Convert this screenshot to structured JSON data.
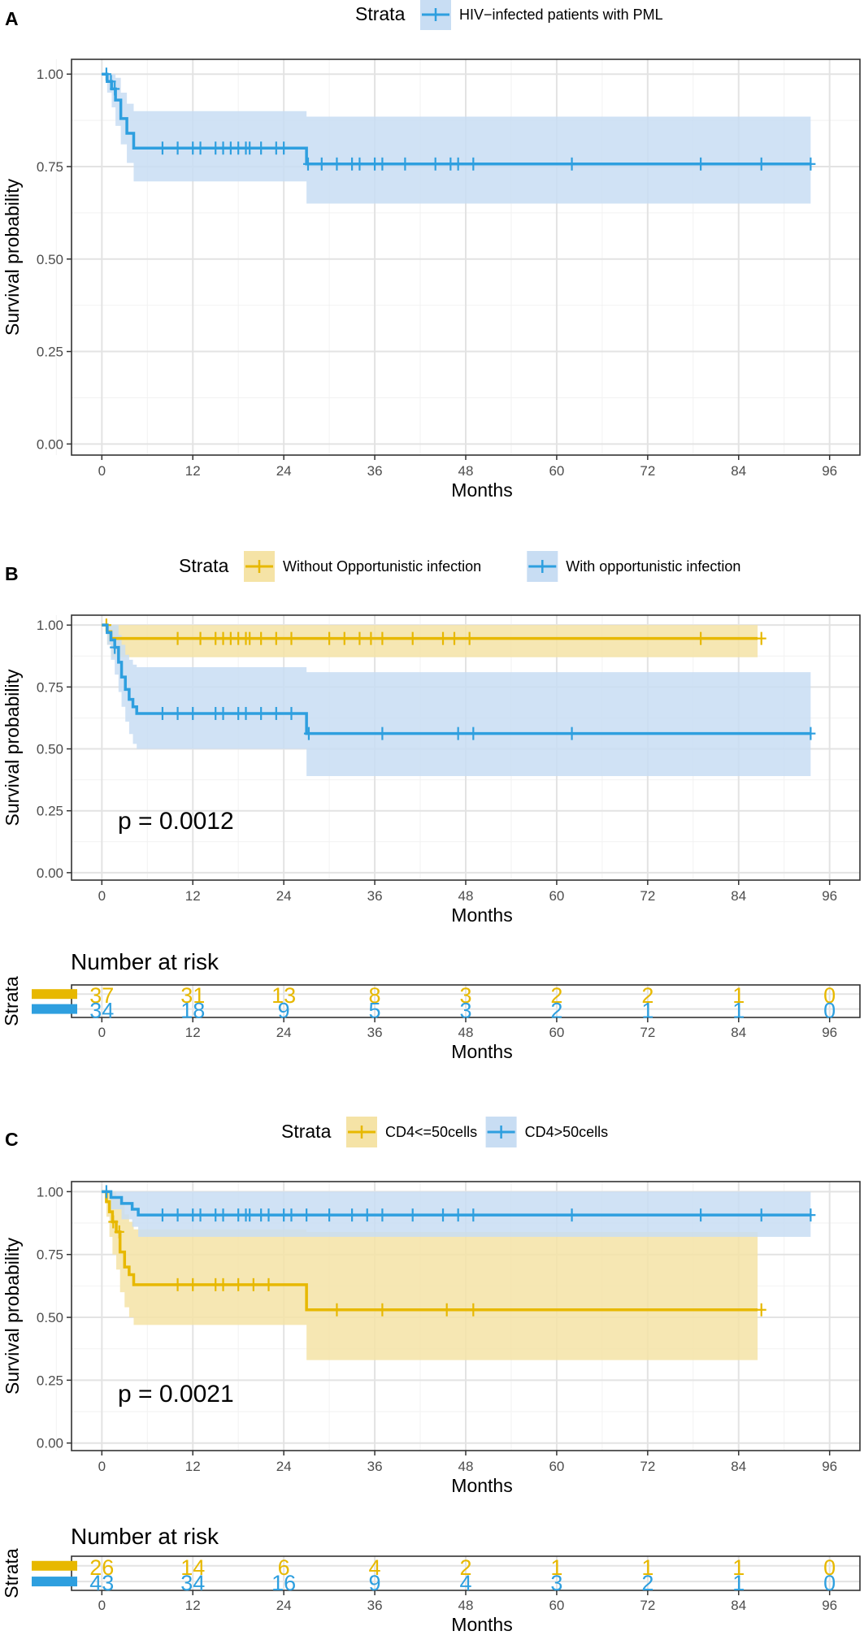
{
  "colors": {
    "yellow": "#E7B800",
    "blue": "#2E9FDF",
    "yellow_band": "#F5E3A6",
    "blue_band": "#C8DDF3",
    "frame": "#333333",
    "grid_major": "#E3E3E3",
    "grid_minor": "#F2F2F2",
    "tick_text": "#4D4D4D"
  },
  "chart_data": [
    {
      "panel": "A",
      "type": "line",
      "subtype": "kaplan-meier",
      "legend_title": "Strata",
      "xlabel": "Months",
      "ylabel": "Survival probability",
      "xlim": [
        -4,
        100
      ],
      "ylim": [
        -0.03,
        1.04
      ],
      "x_ticks": [
        0,
        12,
        24,
        36,
        48,
        60,
        72,
        84,
        96
      ],
      "y_ticks": [
        "0.00",
        "0.25",
        "0.50",
        "0.75",
        "1.00"
      ],
      "pvalue": null,
      "series": [
        {
          "name": "HIV−infected patients with PML",
          "color": "#2E9FDF",
          "band": "#C8DDF3",
          "steps": [
            [
              0,
              1.0
            ],
            [
              0.7,
              0.98
            ],
            [
              1.3,
              0.96
            ],
            [
              1.8,
              0.93
            ],
            [
              2.5,
              0.88
            ],
            [
              3.3,
              0.84
            ],
            [
              4.2,
              0.8
            ],
            [
              27,
              0.757
            ],
            [
              93.5,
              0.757
            ]
          ],
          "lower": [
            [
              0,
              1.0
            ],
            [
              0.7,
              0.95
            ],
            [
              1.3,
              0.91
            ],
            [
              1.8,
              0.86
            ],
            [
              2.5,
              0.81
            ],
            [
              3.3,
              0.76
            ],
            [
              4.2,
              0.71
            ],
            [
              27,
              0.65
            ],
            [
              93.5,
              0.65
            ]
          ],
          "upper": [
            [
              0,
              1.0
            ],
            [
              0.7,
              1.0
            ],
            [
              1.3,
              1.0
            ],
            [
              1.8,
              0.99
            ],
            [
              2.5,
              0.95
            ],
            [
              3.3,
              0.92
            ],
            [
              4.2,
              0.9
            ],
            [
              27,
              0.885
            ],
            [
              93.5,
              0.885
            ]
          ],
          "censors": [
            0.6,
            1.2,
            1.7,
            8,
            10,
            12,
            13,
            15,
            16,
            17,
            18,
            19,
            19.5,
            21,
            23,
            24,
            27.2,
            29,
            31,
            33,
            34,
            36,
            37,
            40,
            44,
            46,
            47,
            49,
            62,
            79,
            87,
            93.5
          ]
        }
      ]
    },
    {
      "panel": "B",
      "type": "line",
      "subtype": "kaplan-meier",
      "legend_title": "Strata",
      "xlabel": "Months",
      "ylabel": "Survival probability",
      "xlim": [
        -4,
        100
      ],
      "ylim": [
        -0.03,
        1.04
      ],
      "x_ticks": [
        0,
        12,
        24,
        36,
        48,
        60,
        72,
        84,
        96
      ],
      "y_ticks": [
        "0.00",
        "0.25",
        "0.50",
        "0.75",
        "1.00"
      ],
      "pvalue": "p = 0.0012",
      "series": [
        {
          "name": "Without Opportunistic infection",
          "color": "#E7B800",
          "band": "#F5E3A6",
          "steps": [
            [
              0,
              1.0
            ],
            [
              0.7,
              0.973
            ],
            [
              1.2,
              0.946
            ],
            [
              86.5,
              0.946
            ]
          ],
          "lower": [
            [
              0,
              1.0
            ],
            [
              0.7,
              0.92
            ],
            [
              1.2,
              0.87
            ],
            [
              86.5,
              0.87
            ]
          ],
          "upper": [
            [
              0,
              1.0
            ],
            [
              86.5,
              1.0
            ]
          ],
          "censors": [
            0.6,
            10,
            13,
            15,
            16,
            17,
            18,
            19,
            19.5,
            21,
            23,
            25,
            30,
            32,
            34,
            35.5,
            37,
            41,
            45,
            46.5,
            48.5,
            79,
            87
          ]
        },
        {
          "name": "With opportunistic infection",
          "color": "#2E9FDF",
          "band": "#C8DDF3",
          "steps": [
            [
              0,
              1.0
            ],
            [
              0.7,
              0.97
            ],
            [
              1.2,
              0.94
            ],
            [
              1.7,
              0.91
            ],
            [
              2.2,
              0.85
            ],
            [
              2.6,
              0.79
            ],
            [
              3.1,
              0.74
            ],
            [
              3.6,
              0.7
            ],
            [
              4.1,
              0.67
            ],
            [
              4.6,
              0.643
            ],
            [
              27,
              0.562
            ],
            [
              93.5,
              0.562
            ]
          ],
          "lower": [
            [
              0,
              1.0
            ],
            [
              0.7,
              0.92
            ],
            [
              1.2,
              0.86
            ],
            [
              1.7,
              0.8
            ],
            [
              2.2,
              0.73
            ],
            [
              2.6,
              0.67
            ],
            [
              3.1,
              0.61
            ],
            [
              3.6,
              0.56
            ],
            [
              4.1,
              0.52
            ],
            [
              4.6,
              0.5
            ],
            [
              27,
              0.39
            ],
            [
              93.5,
              0.39
            ]
          ],
          "upper": [
            [
              0,
              1.0
            ],
            [
              1.7,
              1.0
            ],
            [
              2.2,
              0.96
            ],
            [
              2.6,
              0.92
            ],
            [
              3.1,
              0.88
            ],
            [
              3.6,
              0.86
            ],
            [
              4.1,
              0.84
            ],
            [
              4.6,
              0.83
            ],
            [
              27,
              0.81
            ],
            [
              93.5,
              0.81
            ]
          ],
          "censors": [
            1.7,
            8,
            10,
            12,
            15,
            16,
            18,
            19,
            21,
            23,
            25,
            27.3,
            37,
            47,
            49,
            62,
            93.5
          ]
        }
      ],
      "risk_table": {
        "title": "Number at risk",
        "ylabel": "Strata",
        "xlabel": "Months",
        "rows": [
          {
            "color": "#E7B800",
            "values": [
              "37",
              "31",
              "13",
              "8",
              "3",
              "2",
              "2",
              "1",
              "0"
            ]
          },
          {
            "color": "#2E9FDF",
            "values": [
              "34",
              "18",
              "9",
              "5",
              "3",
              "2",
              "1",
              "1",
              "0"
            ]
          }
        ]
      }
    },
    {
      "panel": "C",
      "type": "line",
      "subtype": "kaplan-meier",
      "legend_title": "Strata",
      "xlabel": "Months",
      "ylabel": "Survival probability",
      "xlim": [
        -4,
        100
      ],
      "ylim": [
        -0.03,
        1.04
      ],
      "x_ticks": [
        0,
        12,
        24,
        36,
        48,
        60,
        72,
        84,
        96
      ],
      "y_ticks": [
        "0.00",
        "0.25",
        "0.50",
        "0.75",
        "1.00"
      ],
      "pvalue": "p = 0.0021",
      "series": [
        {
          "name": "CD4<=50cells",
          "color": "#E7B800",
          "band": "#F5E3A6",
          "steps": [
            [
              0,
              1.0
            ],
            [
              0.6,
              0.96
            ],
            [
              1.0,
              0.92
            ],
            [
              1.4,
              0.88
            ],
            [
              1.9,
              0.84
            ],
            [
              2.4,
              0.76
            ],
            [
              3.0,
              0.7
            ],
            [
              3.6,
              0.67
            ],
            [
              4.2,
              0.63
            ],
            [
              27,
              0.53
            ],
            [
              86.5,
              0.53
            ]
          ],
          "lower": [
            [
              0,
              1.0
            ],
            [
              0.6,
              0.9
            ],
            [
              1.0,
              0.82
            ],
            [
              1.4,
              0.75
            ],
            [
              1.9,
              0.69
            ],
            [
              2.4,
              0.6
            ],
            [
              3.0,
              0.54
            ],
            [
              3.6,
              0.5
            ],
            [
              4.2,
              0.47
            ],
            [
              27,
              0.33
            ],
            [
              86.5,
              0.33
            ]
          ],
          "upper": [
            [
              0,
              1.0
            ],
            [
              1.4,
              1.0
            ],
            [
              1.9,
              0.98
            ],
            [
              2.4,
              0.95
            ],
            [
              3.0,
              0.91
            ],
            [
              3.6,
              0.88
            ],
            [
              4.2,
              0.85
            ],
            [
              27,
              0.84
            ],
            [
              86.5,
              0.84
            ]
          ],
          "censors": [
            1.5,
            2.3,
            10,
            12,
            15,
            16,
            18,
            20,
            22,
            31,
            37,
            45.5,
            49,
            87
          ]
        },
        {
          "name": "CD4>50cells",
          "color": "#2E9FDF",
          "band": "#C8DDF3",
          "steps": [
            [
              0,
              1.0
            ],
            [
              1.2,
              0.977
            ],
            [
              2.6,
              0.953
            ],
            [
              4.0,
              0.93
            ],
            [
              4.8,
              0.907
            ],
            [
              93.5,
              0.907
            ]
          ],
          "lower": [
            [
              0,
              1.0
            ],
            [
              1.2,
              0.93
            ],
            [
              2.6,
              0.89
            ],
            [
              4.0,
              0.86
            ],
            [
              4.8,
              0.82
            ],
            [
              93.5,
              0.82
            ]
          ],
          "upper": [
            [
              0,
              1.0
            ],
            [
              93.5,
              1.0
            ]
          ],
          "censors": [
            0.6,
            8,
            10,
            12,
            13,
            15,
            16,
            18,
            19,
            19.5,
            21,
            22,
            24,
            25,
            27,
            30,
            33,
            35,
            37,
            41,
            45,
            47,
            49,
            62,
            79,
            87,
            93.5
          ]
        }
      ],
      "risk_table": {
        "title": "Number at risk",
        "ylabel": "Strata",
        "xlabel": "Months",
        "rows": [
          {
            "color": "#E7B800",
            "values": [
              "26",
              "14",
              "6",
              "4",
              "2",
              "1",
              "1",
              "1",
              "0"
            ]
          },
          {
            "color": "#2E9FDF",
            "values": [
              "43",
              "34",
              "16",
              "9",
              "4",
              "3",
              "2",
              "1",
              "0"
            ]
          }
        ]
      }
    }
  ]
}
